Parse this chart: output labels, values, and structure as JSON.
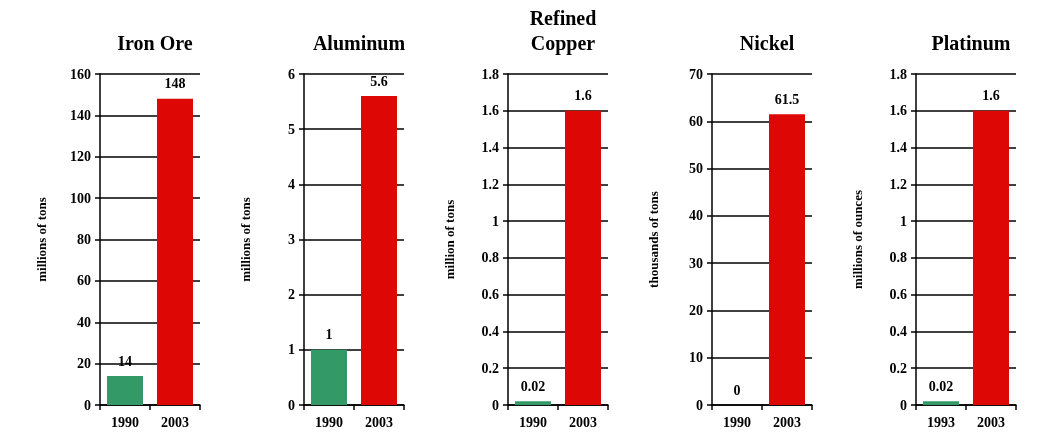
{
  "chart_data": [
    {
      "type": "bar",
      "title": "Iron Ore",
      "ylabel": "millions of tons",
      "categories": [
        "1990",
        "2003"
      ],
      "values": [
        14,
        148
      ],
      "colors": [
        "#339966",
        "#dd0806"
      ],
      "ylim": [
        0,
        160
      ],
      "yticks": [
        0,
        20,
        40,
        60,
        80,
        100,
        120,
        140,
        160
      ],
      "grid": "y",
      "data_labels": true
    },
    {
      "type": "bar",
      "title": "Aluminum",
      "ylabel": "millions of tons",
      "categories": [
        "1990",
        "2003"
      ],
      "values": [
        1,
        5.6
      ],
      "colors": [
        "#339966",
        "#dd0806"
      ],
      "ylim": [
        0,
        6
      ],
      "yticks": [
        0,
        1,
        2,
        3,
        4,
        5,
        6
      ],
      "grid": "y",
      "data_labels": true
    },
    {
      "type": "bar",
      "title": "Refined\nCopper",
      "ylabel": "million of tons",
      "categories": [
        "1990",
        "2003"
      ],
      "values": [
        0.02,
        1.6
      ],
      "colors": [
        "#339966",
        "#dd0806"
      ],
      "ylim": [
        0,
        1.8
      ],
      "yticks": [
        0,
        0.2,
        0.4,
        0.6,
        0.8,
        1,
        1.2,
        1.4,
        1.6,
        1.8
      ],
      "grid": "y",
      "data_labels": true
    },
    {
      "type": "bar",
      "title": "Nickel",
      "ylabel": "thousands of tons",
      "categories": [
        "1990",
        "2003"
      ],
      "values": [
        0,
        61.5
      ],
      "colors": [
        "#339966",
        "#dd0806"
      ],
      "ylim": [
        0,
        70
      ],
      "yticks": [
        0,
        10,
        20,
        30,
        40,
        50,
        60,
        70
      ],
      "grid": "y",
      "data_labels": true
    },
    {
      "type": "bar",
      "title": "Platinum",
      "ylabel": "millions of ounces",
      "categories": [
        "1993",
        "2003"
      ],
      "values": [
        0.02,
        1.6
      ],
      "colors": [
        "#339966",
        "#dd0806"
      ],
      "ylim": [
        0,
        1.8
      ],
      "yticks": [
        0,
        0.2,
        0.4,
        0.6,
        0.8,
        1,
        1.2,
        1.4,
        1.6,
        1.8
      ],
      "grid": "y",
      "data_labels": true
    }
  ]
}
